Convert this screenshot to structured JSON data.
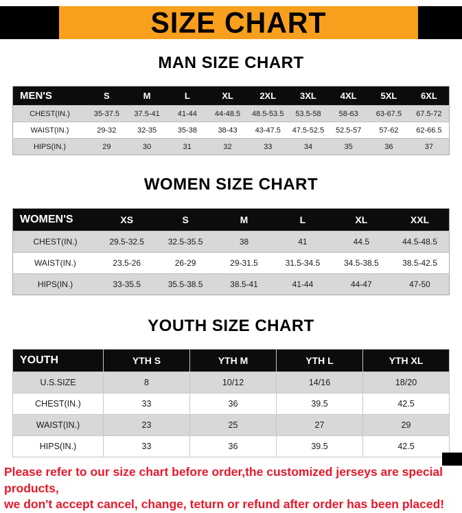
{
  "title": "SIZE CHART",
  "colors": {
    "banner_orange": "#f8a01e",
    "header_black": "#0c0c0c",
    "row_gray": "#d8d8d8",
    "row_white": "#ffffff",
    "footer_red": "#e8192c"
  },
  "sections": [
    {
      "heading": "MAN SIZE CHART",
      "table_name": "mens-size-table",
      "columns": [
        "MEN'S",
        "S",
        "M",
        "L",
        "XL",
        "2XL",
        "3XL",
        "4XL",
        "5XL",
        "6XL"
      ],
      "rows": [
        {
          "label": "CHEST(IN.)",
          "values": [
            "35-37.5",
            "37.5-41",
            "41-44",
            "44-48.5",
            "48.5-53.5",
            "53.5-58",
            "58-63",
            "63-67.5",
            "67.5-72"
          ]
        },
        {
          "label": "WAIST(IN.)",
          "values": [
            "29-32",
            "32-35",
            "35-38",
            "38-43",
            "43-47.5",
            "47.5-52.5",
            "52.5-57",
            "57-62",
            "62-66.5"
          ]
        },
        {
          "label": "HIPS(IN.)",
          "values": [
            "29",
            "30",
            "31",
            "32",
            "33",
            "34",
            "35",
            "36",
            "37"
          ]
        }
      ]
    },
    {
      "heading": "WOMEN SIZE CHART",
      "table_name": "womens-size-table",
      "columns": [
        "WOMEN'S",
        "XS",
        "S",
        "M",
        "L",
        "XL",
        "XXL"
      ],
      "rows": [
        {
          "label": "CHEST(IN.)",
          "values": [
            "29.5-32.5",
            "32.5-35.5",
            "38",
            "41",
            "44.5",
            "44.5-48.5"
          ]
        },
        {
          "label": "WAIST(IN.)",
          "values": [
            "23.5-26",
            "26-29",
            "29-31.5",
            "31.5-34.5",
            "34.5-38.5",
            "38.5-42.5"
          ]
        },
        {
          "label": "HIPS(IN.)",
          "values": [
            "33-35.5",
            "35.5-38.5",
            "38.5-41",
            "41-44",
            "44-47",
            "47-50"
          ]
        }
      ]
    },
    {
      "heading": "YOUTH SIZE CHART",
      "table_name": "youth-size-table",
      "columns": [
        "YOUTH",
        "YTH S",
        "YTH M",
        "YTH L",
        "YTH XL"
      ],
      "rows": [
        {
          "label": "U.S.SIZE",
          "values": [
            "8",
            "10/12",
            "14/16",
            "18/20"
          ]
        },
        {
          "label": "CHEST(IN.)",
          "values": [
            "33",
            "36",
            "39.5",
            "42.5"
          ]
        },
        {
          "label": "WAIST(IN.)",
          "values": [
            "23",
            "25",
            "27",
            "29"
          ]
        },
        {
          "label": "HIPS(IN.)",
          "values": [
            "33",
            "36",
            "39.5",
            "42.5"
          ]
        }
      ]
    }
  ],
  "footer": {
    "line1": "Please refer to our size chart before order,the customized jerseys are special products,",
    "line2": "we don't accept cancel, change, teturn or refund after order has been placed!"
  }
}
